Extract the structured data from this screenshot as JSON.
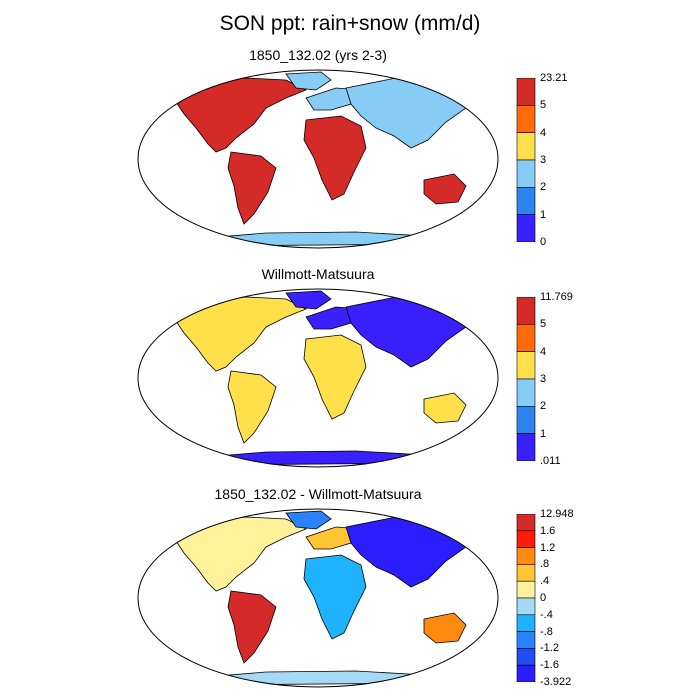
{
  "figure": {
    "title": "SON ppt: rain+snow (mm/d)"
  },
  "panels": [
    {
      "title": "1850_132.02 (yrs 2-3)",
      "colorbar": {
        "labels": [
          "23.21",
          "5",
          "4",
          "3",
          "2",
          "1",
          "0"
        ],
        "colors": [
          "#d42a28",
          "#ff6b0a",
          "#ffe04a",
          "#86ccf5",
          "#2d84f0",
          "#3a1fff"
        ]
      }
    },
    {
      "title": "Willmott-Matsuura",
      "colorbar": {
        "labels": [
          "11.769",
          "5",
          "4",
          "3",
          "2",
          "1",
          ".011"
        ],
        "colors": [
          "#d42a28",
          "#ff6b0a",
          "#ffe04a",
          "#86ccf5",
          "#2d84f0",
          "#3a1fff"
        ]
      }
    },
    {
      "title": "1850_132.02 - Willmott-Matsuura",
      "colorbar": {
        "labels": [
          "12.948",
          "1.6",
          "1.2",
          ".8",
          ".4",
          "0",
          "-.4",
          "-.8",
          "-1.2",
          "-1.6",
          "-3.922"
        ],
        "colors": [
          "#d52a2a",
          "#ff1a0a",
          "#ff8a10",
          "#ffc532",
          "#fff29a",
          "#a6d9f5",
          "#1fb3ff",
          "#2a82ff",
          "#1f4ff0",
          "#2a1eff"
        ]
      }
    }
  ]
}
